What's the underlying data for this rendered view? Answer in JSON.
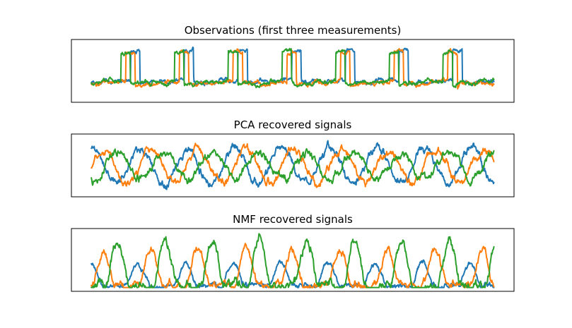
{
  "figure": {
    "background": "#ffffff"
  },
  "chart_data": [
    {
      "type": "line",
      "title": "Observations (first three measurements)",
      "xlabel": "",
      "ylabel": "",
      "grid": false,
      "xticks": false,
      "yticks": false,
      "ylim": [
        -2.6,
        3.2
      ],
      "series": [
        {
          "color": "#1f77b4",
          "signal": {
            "kind": "sawtooth-mix",
            "points": 2000,
            "baseline": -1.0,
            "noise": 0.08,
            "seed": 1
          }
        },
        {
          "color": "#ff7f0e",
          "signal": {
            "kind": "sawtooth-mix",
            "points": 2000,
            "baseline": -1.2,
            "noise": 0.08,
            "seed": 2
          }
        },
        {
          "color": "#2ca02c",
          "signal": {
            "kind": "sawtooth-mix",
            "points": 2000,
            "baseline": -1.15,
            "noise": 0.08,
            "seed": 3
          }
        }
      ]
    },
    {
      "type": "line",
      "title": "PCA recovered signals",
      "xlabel": "",
      "ylabel": "",
      "grid": false,
      "xticks": false,
      "yticks": false,
      "ylim": [
        -1.6,
        1.6
      ],
      "series": [
        {
          "color": "#1f77b4",
          "signal": {
            "kind": "sine",
            "points": 2000,
            "cycles": 8.5,
            "phase": 1.4,
            "amplitude": 1.0,
            "noise": 0.08,
            "seed": 11
          }
        },
        {
          "color": "#ff7f0e",
          "signal": {
            "kind": "sine",
            "points": 2000,
            "cycles": 8.5,
            "phase": -0.1,
            "amplitude": 1.0,
            "noise": 0.08,
            "seed": 12
          }
        },
        {
          "color": "#2ca02c",
          "signal": {
            "kind": "sine",
            "points": 2000,
            "cycles": 8.5,
            "phase": -1.8,
            "amplitude": 0.75,
            "noise": 0.08,
            "seed": 13
          }
        }
      ]
    },
    {
      "type": "line",
      "title": "NMF recovered signals",
      "xlabel": "",
      "ylabel": "",
      "grid": false,
      "xticks": false,
      "yticks": false,
      "ylim": [
        -0.1,
        2.9
      ],
      "series": [
        {
          "color": "#1f77b4",
          "signal": {
            "kind": "pulse",
            "points": 2000,
            "cycles": 8.5,
            "phase": 1.6,
            "amplitude": 1.2,
            "noise": 0.05,
            "seed": 21
          }
        },
        {
          "color": "#ff7f0e",
          "signal": {
            "kind": "pulse",
            "points": 2000,
            "cycles": 8.5,
            "phase": 0.0,
            "amplitude": 2.0,
            "noise": 0.07,
            "seed": 22
          }
        },
        {
          "color": "#2ca02c",
          "signal": {
            "kind": "pulse",
            "points": 2000,
            "cycles": 8.5,
            "phase": -1.9,
            "amplitude": 2.45,
            "noise": 0.09,
            "seed": 23
          }
        }
      ]
    }
  ]
}
